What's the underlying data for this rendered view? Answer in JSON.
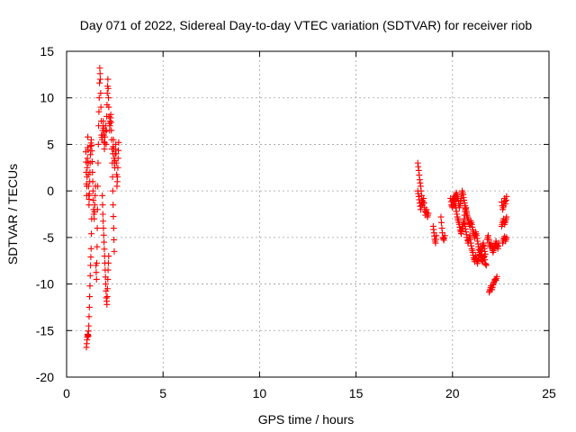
{
  "chart_data": {
    "type": "scatter",
    "title": "Day 071 of 2022, Sidereal Day-to-day VTEC variation (SDTVAR) for receiver riob",
    "xlabel": "GPS time / hours",
    "ylabel": "SDTVAR / TECUs",
    "xlim": [
      0,
      25
    ],
    "ylim": [
      -20,
      15
    ],
    "xticks": [
      0,
      5,
      10,
      15,
      20,
      25
    ],
    "yticks": [
      -20,
      -15,
      -10,
      -5,
      0,
      5,
      10,
      15
    ],
    "grid": true,
    "marker": "plus",
    "series": [
      {
        "name": "SDTVAR",
        "color": "#ff0000",
        "segments": [
          [
            [
              1.0,
              4.2
            ],
            [
              1.02,
              2.0
            ],
            [
              1.04,
              -0.5
            ],
            [
              1.06,
              1.5
            ],
            [
              1.08,
              3.5
            ],
            [
              1.1,
              5.8
            ],
            [
              1.12,
              3.0
            ],
            [
              1.14,
              0.5
            ],
            [
              1.16,
              -1.5
            ],
            [
              1.18,
              -0.3
            ]
          ],
          [
            [
              1.03,
              -16.8
            ],
            [
              1.06,
              -16.0
            ],
            [
              1.09,
              -15.4
            ],
            [
              1.12,
              -15.6
            ],
            [
              1.15,
              -14.5
            ],
            [
              1.18,
              -12.5
            ],
            [
              1.21,
              -10.2
            ],
            [
              1.24,
              -8.0
            ],
            [
              1.27,
              -6.2
            ],
            [
              1.3,
              -3.0
            ]
          ],
          [
            [
              1.2,
              1.0
            ],
            [
              1.22,
              3.0
            ],
            [
              1.25,
              4.8
            ],
            [
              1.28,
              5.5
            ],
            [
              1.31,
              4.3
            ],
            [
              1.34,
              2.0
            ],
            [
              1.37,
              0.0
            ],
            [
              1.4,
              -2.0
            ],
            [
              1.43,
              -3.0
            ],
            [
              1.46,
              -1.5
            ],
            [
              1.5,
              0.5
            ]
          ],
          [
            [
              1.52,
              -8.0
            ],
            [
              1.55,
              -9.5
            ],
            [
              1.58,
              -6.0
            ],
            [
              1.6,
              -2.0
            ],
            [
              1.63,
              3.0
            ],
            [
              1.66,
              7.0
            ],
            [
              1.69,
              10.0
            ],
            [
              1.72,
              13.2
            ],
            [
              1.75,
              12.0
            ],
            [
              1.78,
              9.0
            ],
            [
              1.81,
              6.0
            ],
            [
              1.84,
              5.5
            ],
            [
              1.87,
              6.5
            ],
            [
              1.9,
              7.5
            ],
            [
              1.93,
              6.0
            ],
            [
              1.96,
              4.5
            ],
            [
              1.99,
              5.8
            ],
            [
              2.02,
              7.0
            ]
          ],
          [
            [
              1.85,
              -0.5
            ],
            [
              1.88,
              -2.5
            ],
            [
              1.91,
              -4.0
            ],
            [
              1.94,
              -5.5
            ],
            [
              1.97,
              -7.0
            ],
            [
              2.0,
              -8.5
            ],
            [
              2.03,
              -10.0
            ],
            [
              2.06,
              -11.5
            ],
            [
              2.09,
              -12.2
            ],
            [
              2.12,
              -10.5
            ],
            [
              2.15,
              -8.5
            ],
            [
              2.18,
              -7.0
            ]
          ],
          [
            [
              2.05,
              5.0
            ],
            [
              2.08,
              8.0
            ],
            [
              2.11,
              10.5
            ],
            [
              2.14,
              12.0
            ],
            [
              2.17,
              10.0
            ],
            [
              2.2,
              8.0
            ],
            [
              2.23,
              6.5
            ],
            [
              2.26,
              7.5
            ],
            [
              2.29,
              8.2
            ],
            [
              2.32,
              6.5
            ],
            [
              2.35,
              4.5
            ],
            [
              2.38,
              1.5
            ],
            [
              2.41,
              -1.5
            ],
            [
              2.44,
              -4.0
            ],
            [
              2.47,
              -6.5
            ]
          ],
          [
            [
              2.4,
              4.0
            ],
            [
              2.43,
              5.5
            ],
            [
              2.46,
              3.5
            ],
            [
              2.49,
              2.5
            ],
            [
              2.52,
              4.0
            ],
            [
              2.55,
              5.0
            ],
            [
              2.58,
              3.0
            ],
            [
              2.61,
              0.5
            ],
            [
              2.64,
              1.5
            ],
            [
              2.67,
              3.5
            ],
            [
              2.7,
              5.2
            ]
          ],
          [
            [
              18.2,
              3.0
            ],
            [
              18.25,
              2.2
            ],
            [
              18.3,
              1.2
            ],
            [
              18.35,
              0.5
            ],
            [
              18.4,
              -0.5
            ],
            [
              18.45,
              -1.5
            ],
            [
              18.5,
              -0.8
            ],
            [
              18.55,
              -1.8
            ],
            [
              18.6,
              -2.6
            ],
            [
              18.65,
              -2.0
            ],
            [
              18.7,
              -2.8
            ],
            [
              18.75,
              -2.4
            ]
          ],
          [
            [
              18.2,
              0.0
            ],
            [
              18.25,
              -0.6
            ],
            [
              18.3,
              -1.3
            ],
            [
              18.35,
              -2.0
            ],
            [
              18.4,
              -1.2
            ]
          ],
          [
            [
              19.0,
              -3.8
            ],
            [
              19.04,
              -4.5
            ],
            [
              19.08,
              -5.2
            ],
            [
              19.12,
              -5.6
            ],
            [
              19.16,
              -4.8
            ]
          ],
          [
            [
              19.4,
              -2.8
            ],
            [
              19.45,
              -4.0
            ],
            [
              19.5,
              -5.0
            ],
            [
              19.55,
              -5.3
            ],
            [
              19.6,
              -4.8
            ]
          ],
          [
            [
              19.9,
              -0.8
            ],
            [
              19.95,
              -1.5
            ],
            [
              20.0,
              -1.8
            ],
            [
              20.05,
              -1.2
            ],
            [
              20.1,
              -0.6
            ],
            [
              20.15,
              -1.4
            ],
            [
              20.2,
              -2.2
            ],
            [
              20.25,
              -2.8
            ],
            [
              20.3,
              -3.2
            ],
            [
              20.35,
              -3.6
            ],
            [
              20.4,
              -4.2
            ],
            [
              20.45,
              -4.6
            ],
            [
              20.5,
              -4.0
            ],
            [
              20.55,
              -3.6
            ],
            [
              20.6,
              -3.2
            ],
            [
              20.65,
              -3.8
            ],
            [
              20.7,
              -4.4
            ],
            [
              20.75,
              -5.0
            ],
            [
              20.8,
              -5.6
            ],
            [
              20.85,
              -5.2
            ],
            [
              20.9,
              -4.8
            ],
            [
              20.95,
              -5.6
            ],
            [
              21.0,
              -6.2
            ],
            [
              21.05,
              -6.6
            ],
            [
              21.1,
              -7.2
            ],
            [
              21.15,
              -7.6
            ],
            [
              21.2,
              -7.0
            ],
            [
              21.25,
              -7.4
            ],
            [
              21.3,
              -7.8
            ],
            [
              21.35,
              -7.2
            ],
            [
              21.4,
              -6.8
            ],
            [
              21.45,
              -7.0
            ],
            [
              21.5,
              -7.4
            ],
            [
              21.55,
              -7.6
            ],
            [
              21.6,
              -7.2
            ],
            [
              21.65,
              -7.0
            ],
            [
              21.7,
              -7.8
            ],
            [
              21.75,
              -8.0
            ]
          ],
          [
            [
              20.0,
              -1.0
            ],
            [
              20.05,
              -0.8
            ],
            [
              20.1,
              -1.6
            ],
            [
              20.15,
              -0.6
            ],
            [
              20.2,
              -0.2
            ],
            [
              20.25,
              -0.6
            ],
            [
              20.3,
              -1.0
            ],
            [
              20.35,
              -1.8
            ],
            [
              20.4,
              -1.4
            ],
            [
              20.45,
              -0.8
            ],
            [
              20.5,
              0.0
            ],
            [
              20.55,
              -0.4
            ],
            [
              20.6,
              -1.0
            ],
            [
              20.65,
              -1.6
            ],
            [
              20.7,
              -2.2
            ],
            [
              20.75,
              -2.6
            ]
          ],
          [
            [
              20.6,
              -3.0
            ],
            [
              20.65,
              -2.2
            ],
            [
              20.7,
              -1.8
            ],
            [
              20.75,
              -2.6
            ],
            [
              20.8,
              -3.0
            ],
            [
              20.85,
              -3.4
            ],
            [
              20.9,
              -3.8
            ],
            [
              20.95,
              -3.2
            ],
            [
              21.0,
              -3.6
            ],
            [
              21.05,
              -4.2
            ],
            [
              21.1,
              -4.6
            ],
            [
              21.15,
              -5.0
            ],
            [
              21.2,
              -4.4
            ],
            [
              21.25,
              -4.8
            ],
            [
              21.3,
              -5.4
            ],
            [
              21.35,
              -6.0
            ],
            [
              21.4,
              -6.6
            ],
            [
              21.45,
              -6.2
            ],
            [
              21.5,
              -6.8
            ],
            [
              21.55,
              -6.0
            ],
            [
              21.6,
              -5.6
            ],
            [
              21.65,
              -6.2
            ],
            [
              21.7,
              -6.8
            ]
          ],
          [
            [
              21.9,
              -10.9
            ],
            [
              21.95,
              -10.6
            ],
            [
              22.0,
              -10.2
            ],
            [
              22.05,
              -10.6
            ],
            [
              22.1,
              -10.1
            ],
            [
              22.15,
              -9.8
            ],
            [
              22.2,
              -9.5
            ],
            [
              22.25,
              -9.6
            ],
            [
              22.3,
              -9.2
            ]
          ],
          [
            [
              21.8,
              -5.2
            ],
            [
              21.85,
              -4.8
            ],
            [
              21.9,
              -5.6
            ],
            [
              21.95,
              -6.0
            ],
            [
              22.0,
              -5.6
            ],
            [
              22.05,
              -6.2
            ],
            [
              22.1,
              -6.6
            ],
            [
              22.15,
              -6.2
            ],
            [
              22.2,
              -6.0
            ],
            [
              22.25,
              -5.4
            ],
            [
              22.3,
              -5.8
            ],
            [
              22.35,
              -6.2
            ],
            [
              22.4,
              -5.6
            ]
          ],
          [
            [
              22.55,
              -1.2
            ],
            [
              22.6,
              -2.0
            ],
            [
              22.65,
              -1.6
            ],
            [
              22.7,
              -0.8
            ],
            [
              22.75,
              -1.4
            ],
            [
              22.8,
              -0.6
            ]
          ],
          [
            [
              22.55,
              -3.8
            ],
            [
              22.6,
              -3.4
            ],
            [
              22.65,
              -3.0
            ],
            [
              22.7,
              -3.6
            ],
            [
              22.75,
              -3.2
            ],
            [
              22.8,
              -2.8
            ]
          ],
          [
            [
              22.6,
              -5.6
            ],
            [
              22.65,
              -5.2
            ],
            [
              22.7,
              -4.9
            ],
            [
              22.75,
              -5.4
            ],
            [
              22.8,
              -5.0
            ]
          ]
        ]
      }
    ]
  }
}
